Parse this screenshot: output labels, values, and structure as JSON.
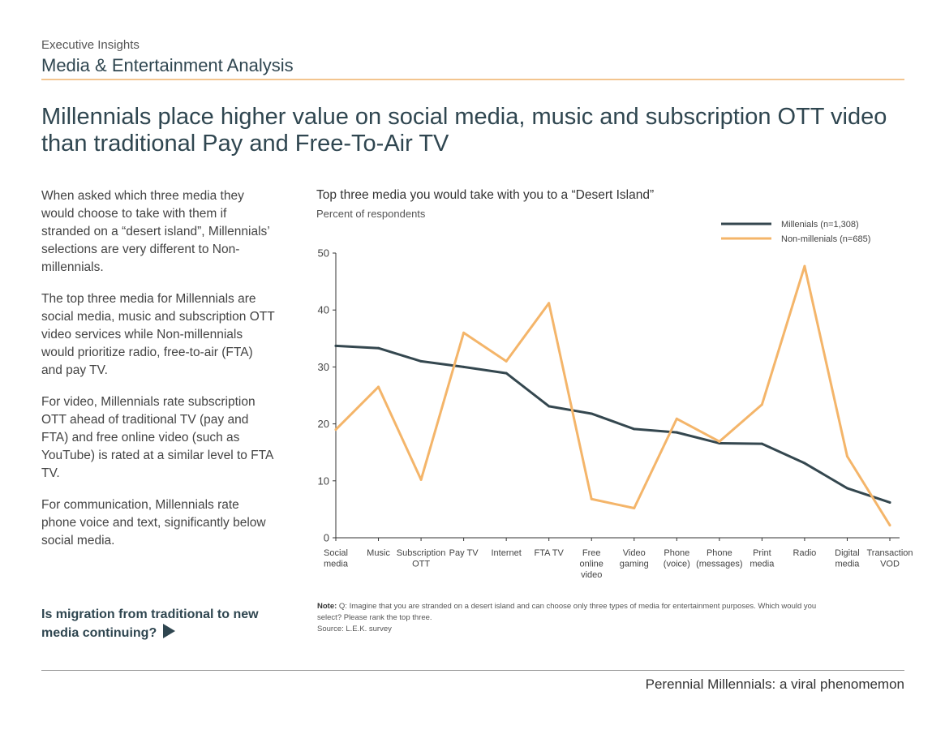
{
  "header": {
    "eyebrow": "Executive Insights",
    "section": "Media & Entertainment Analysis"
  },
  "headline": "Millennials place higher value on social media, music and subscription OTT video than traditional Pay and Free-To-Air TV",
  "body": {
    "p1": "When asked which three media they would choose to take with them if stranded on a “desert island”, Millennials’ selections are very different to Non-millennials.",
    "p2": "The top three media for Millennials are social media, music and subscription OTT video services while Non-millennials would prioritize radio, free-to-air (FTA) and pay TV.",
    "p3": "For video, Millennials rate subscription OTT ahead of traditional TV (pay and FTA) and free online video (such as YouTube) is rated at a similar level to FTA TV.",
    "p4": "For communication, Millennials rate phone voice and text, significantly below social media."
  },
  "cta": {
    "label": "Is migration from traditional to new media continuing?"
  },
  "note": {
    "label": "Note:",
    "text": "Q: Imagine that you are stranded on a desert island and can choose only three types of media for entertainment purposes. Which would you select? Please rank the top three.",
    "source": "Source: L.E.K. survey"
  },
  "footer": {
    "text": "Perennial Millennials: a viral phenomemon"
  },
  "chart_data": {
    "type": "line",
    "title": "Top three media you would take with you to a “Desert Island”",
    "ylabel": "Percent of respondents",
    "xlabel": "",
    "ylim": [
      0,
      50
    ],
    "yticks": [
      0,
      10,
      20,
      30,
      40,
      50
    ],
    "grid": false,
    "legend_position": "top-right",
    "categories": [
      [
        "Social",
        "media"
      ],
      [
        "Music"
      ],
      [
        "Subscription",
        "OTT"
      ],
      [
        "Pay TV"
      ],
      [
        "Internet"
      ],
      [
        "FTA TV"
      ],
      [
        "Free",
        "online",
        "video"
      ],
      [
        "Video",
        "gaming"
      ],
      [
        "Phone",
        "(voice)"
      ],
      [
        "Phone",
        "(messages)"
      ],
      [
        "Print",
        "media"
      ],
      [
        "Radio"
      ],
      [
        "Digital",
        "media"
      ],
      [
        "Transaction",
        "VOD"
      ]
    ],
    "series": [
      {
        "name": "Millenials (n=1,308)",
        "color": "#34474f",
        "values": [
          33.7,
          33.3,
          31.0,
          30.0,
          28.9,
          23.1,
          21.8,
          19.1,
          18.5,
          16.6,
          16.5,
          13.1,
          8.7,
          6.2
        ]
      },
      {
        "name": "Non-millenials (n=685)",
        "color": "#f4b56a",
        "values": [
          19.0,
          26.5,
          10.2,
          36.0,
          31.0,
          41.2,
          6.8,
          5.2,
          20.9,
          16.9,
          23.4,
          47.7,
          14.3,
          2.2
        ]
      }
    ]
  }
}
